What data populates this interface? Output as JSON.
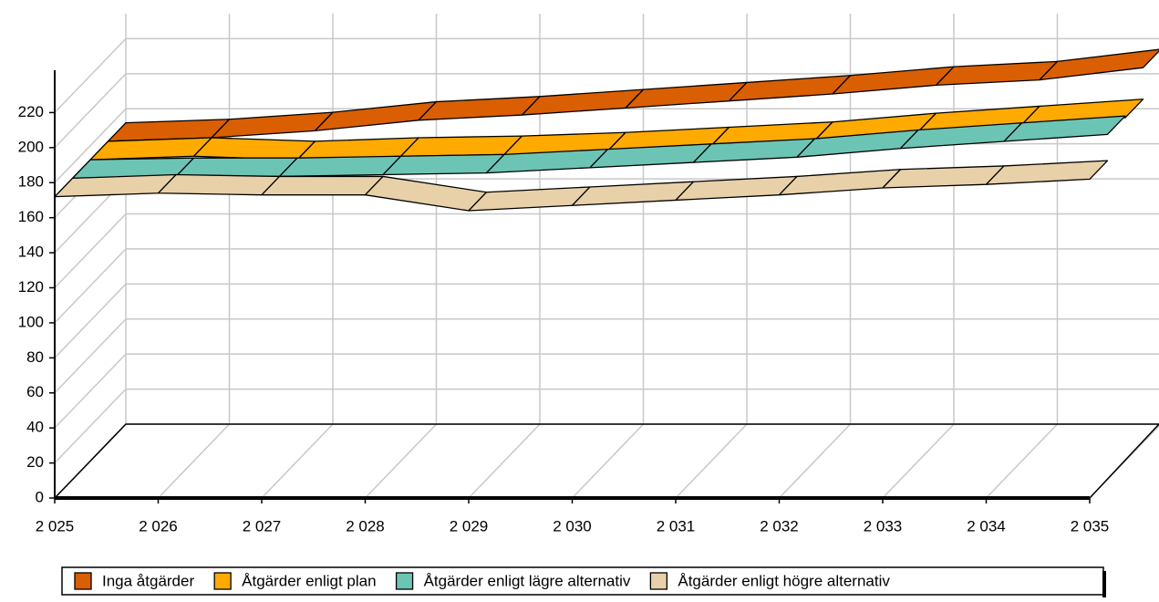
{
  "chart_data": {
    "type": "line3d",
    "categories": [
      "2 025",
      "2 026",
      "2 027",
      "2 028",
      "2 029",
      "2 030",
      "2 031",
      "2 032",
      "2 033",
      "2 034",
      "2 035"
    ],
    "series": [
      {
        "name": "Inga åtgärder",
        "color": "#d95f02",
        "values": [
          172,
          174,
          178,
          184,
          187,
          191,
          195,
          199,
          204,
          207,
          214
        ]
      },
      {
        "name": "Åtgärder enligt plan",
        "color": "#ffaa00",
        "values": [
          172,
          174,
          172,
          174,
          175,
          177,
          180,
          183,
          188,
          192,
          196
        ]
      },
      {
        "name": "Åtgärder enligt lägre alternativ",
        "color": "#6cc4b4",
        "values": [
          172,
          173,
          173,
          174,
          175,
          178,
          181,
          184,
          189,
          193,
          197
        ]
      },
      {
        "name": "Åtgärder enligt högre alternativ",
        "color": "#e8d0a8",
        "values": [
          172,
          174,
          173,
          173,
          164,
          167,
          170,
          173,
          177,
          179,
          182
        ]
      }
    ],
    "ylim": [
      0,
      240
    ],
    "yticks": [
      0,
      20,
      40,
      60,
      80,
      100,
      120,
      140,
      160,
      180,
      200,
      220
    ],
    "grid": true,
    "legend": "bottom"
  }
}
